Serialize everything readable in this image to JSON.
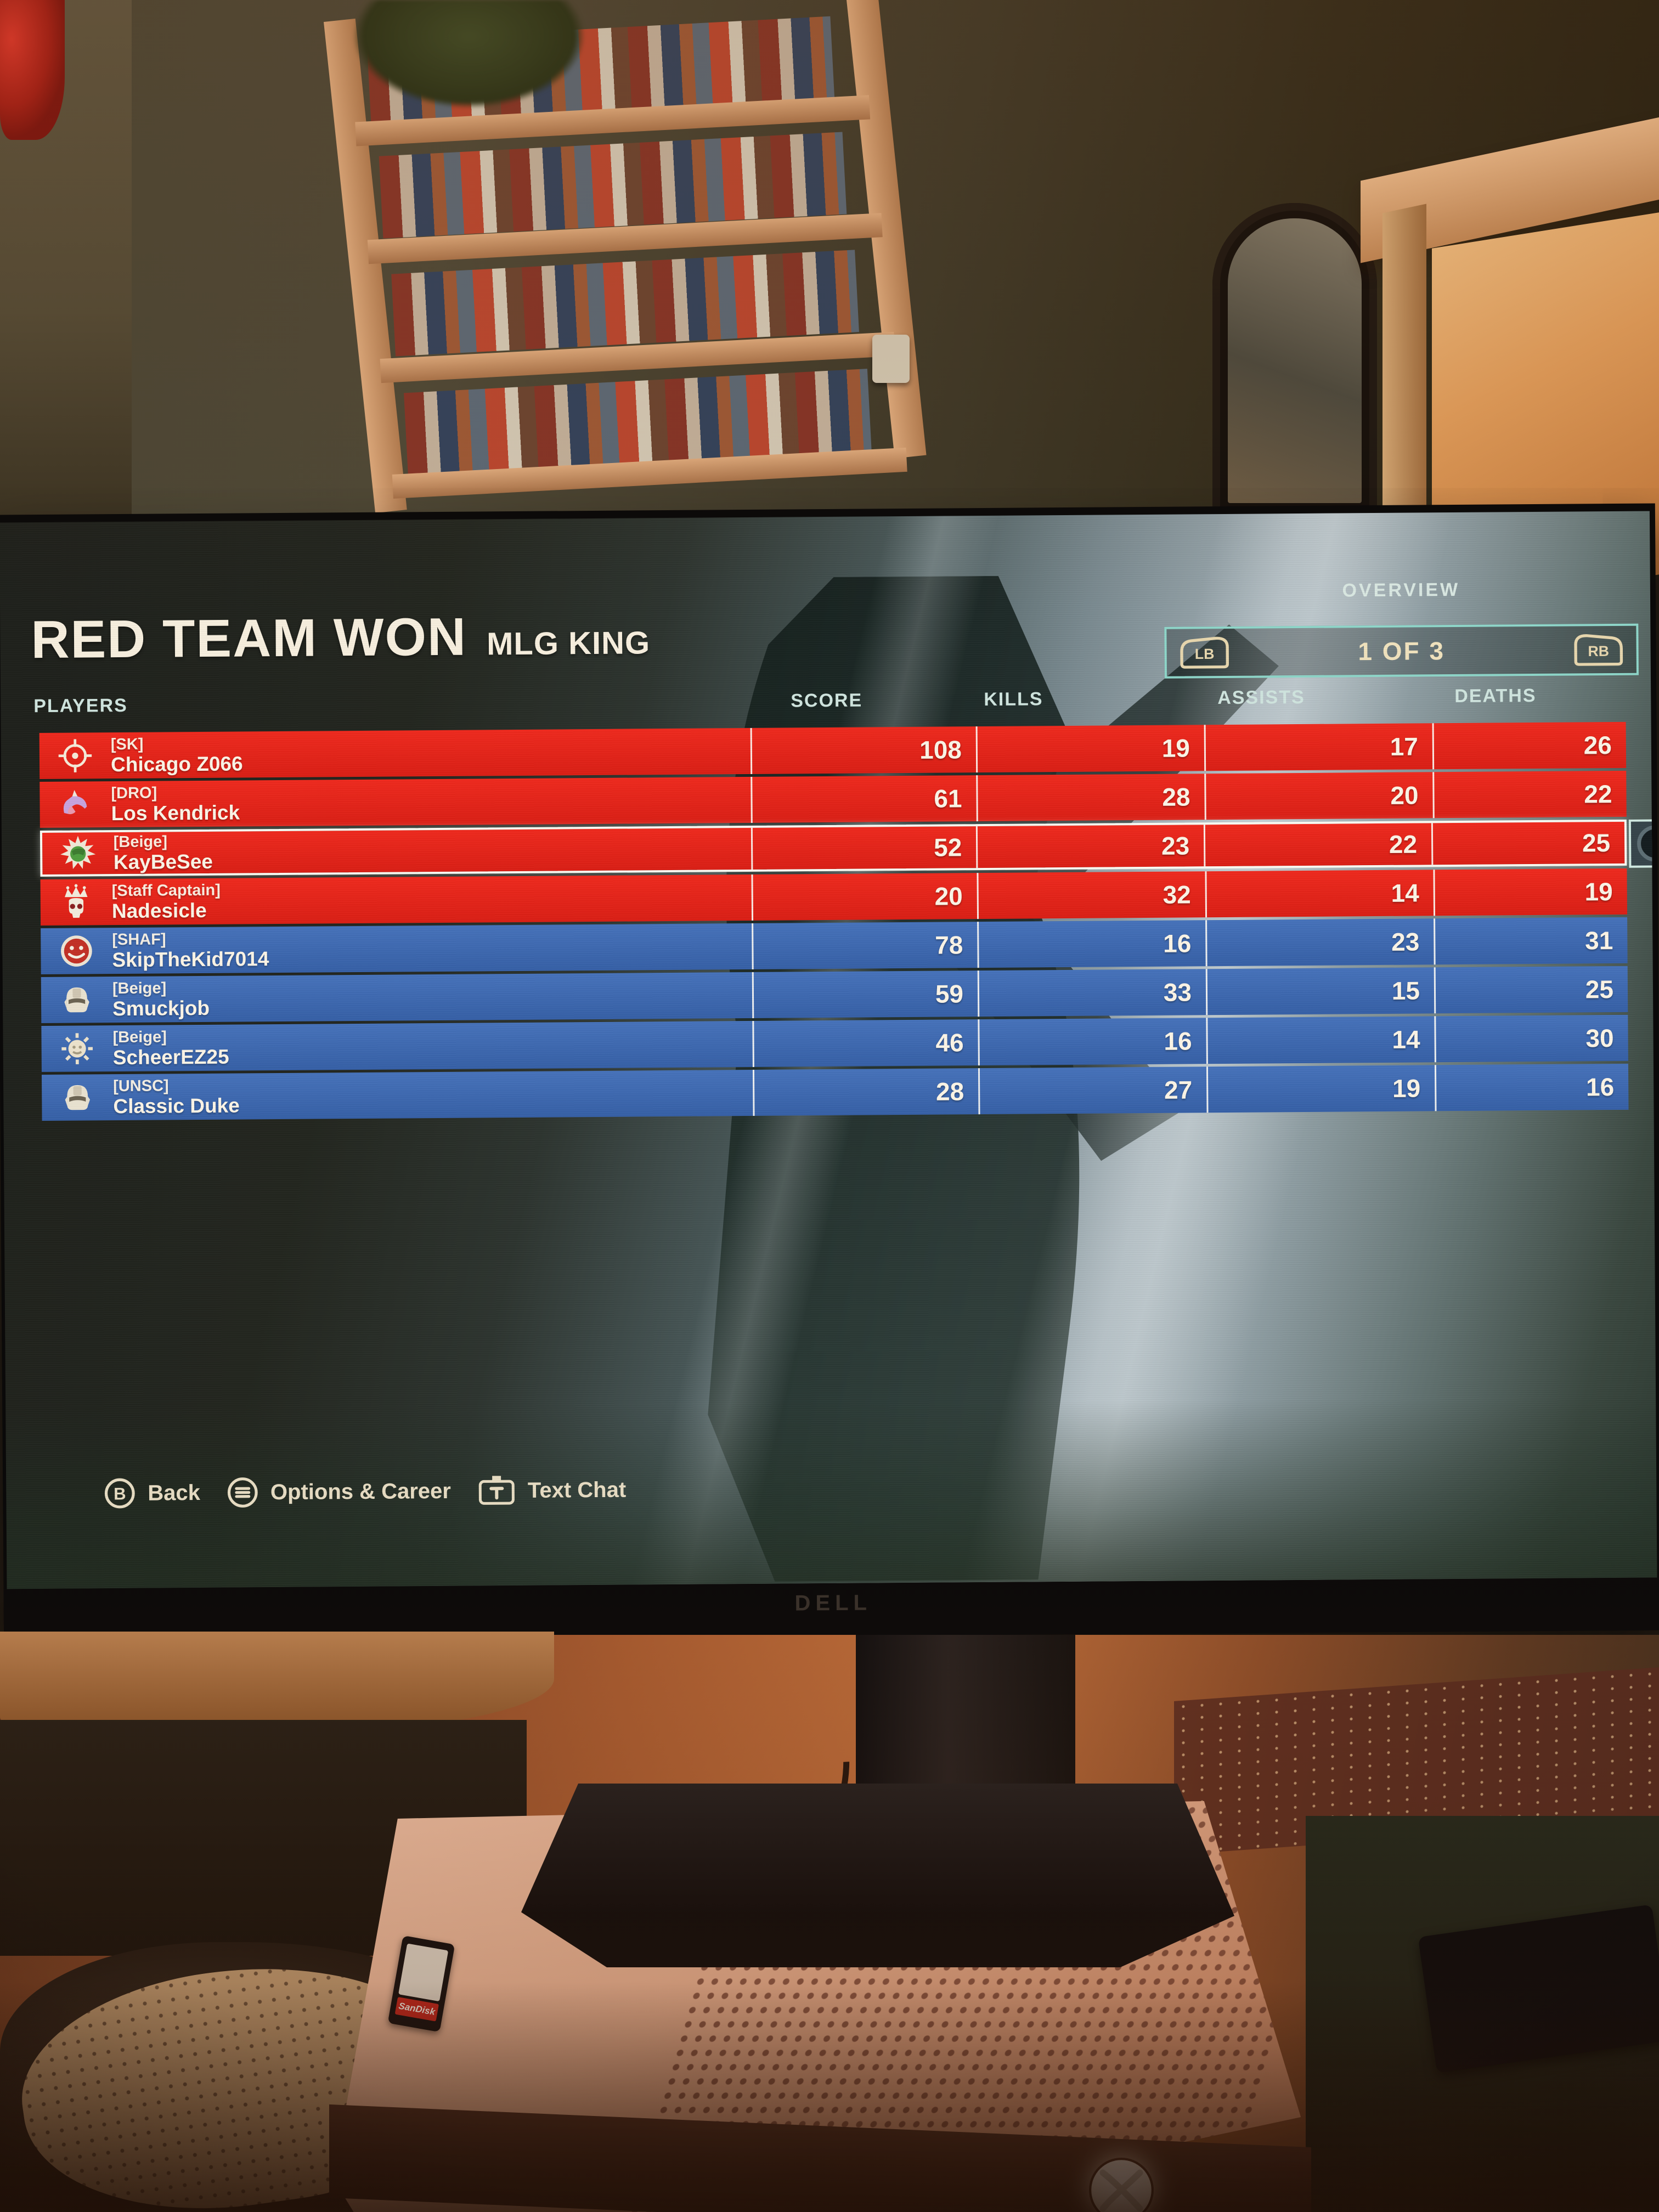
{
  "screen": {
    "title": "RED TEAM WON",
    "subtitle": "MLG KING",
    "overview_label": "OVERVIEW",
    "pager": {
      "lb": "LB",
      "rb": "RB",
      "text": "1 OF 3"
    },
    "columns": {
      "players": "PLAYERS",
      "score": "SCORE",
      "kills": "KILLS",
      "assists": "ASSISTS",
      "deaths": "DEATHS"
    },
    "players": [
      {
        "clan": "[SK]",
        "name": "Chicago Z066",
        "score": 108,
        "kills": 19,
        "assists": 17,
        "deaths": 26,
        "team": "red",
        "emblem": "crosshair-emblem",
        "selected": false
      },
      {
        "clan": "[DRO]",
        "name": "Los Kendrick",
        "score": 61,
        "kills": 28,
        "assists": 20,
        "deaths": 22,
        "team": "red",
        "emblem": "unicorn-emblem",
        "selected": false
      },
      {
        "clan": "[Beige]",
        "name": "KayBeSee",
        "score": 52,
        "kills": 23,
        "assists": 22,
        "deaths": 25,
        "team": "red",
        "emblem": "burst-face-emblem",
        "selected": true
      },
      {
        "clan": "[Staff Captain]",
        "name": "Nadesicle",
        "score": 20,
        "kills": 32,
        "assists": 14,
        "deaths": 19,
        "team": "red",
        "emblem": "skull-crown-emblem",
        "selected": false
      },
      {
        "clan": "[SHAF]",
        "name": "SkipTheKid7014",
        "score": 78,
        "kills": 16,
        "assists": 23,
        "deaths": 31,
        "team": "blue",
        "emblem": "smiley-emblem",
        "selected": false
      },
      {
        "clan": "[Beige]",
        "name": "Smuckjob",
        "score": 59,
        "kills": 33,
        "assists": 15,
        "deaths": 25,
        "team": "blue",
        "emblem": "helmet-emblem",
        "selected": false
      },
      {
        "clan": "[Beige]",
        "name": "ScheerEZ25",
        "score": 46,
        "kills": 16,
        "assists": 14,
        "deaths": 30,
        "team": "blue",
        "emblem": "sun-emblem",
        "selected": false
      },
      {
        "clan": "[UNSC]",
        "name": "Classic Duke",
        "score": 28,
        "kills": 27,
        "assists": 19,
        "deaths": 16,
        "team": "blue",
        "emblem": "helmet-emblem",
        "selected": false
      }
    ],
    "footer": [
      {
        "button": "B",
        "label": "Back"
      },
      {
        "button": "menu",
        "label": "Options & Career"
      },
      {
        "button": "keyboard",
        "label": "Text Chat"
      }
    ]
  },
  "hardware": {
    "monitor_brand": "DELL",
    "memory_card_brand": "SanDisk"
  },
  "colors": {
    "red_team_row": "#e3241c",
    "blue_team_row": "#3e6cb5",
    "accent_teal_border": "#8ed6c9",
    "header_text": "#cfe4de",
    "button_cream": "#e7d6ad",
    "title_text": "#f6eedd"
  }
}
